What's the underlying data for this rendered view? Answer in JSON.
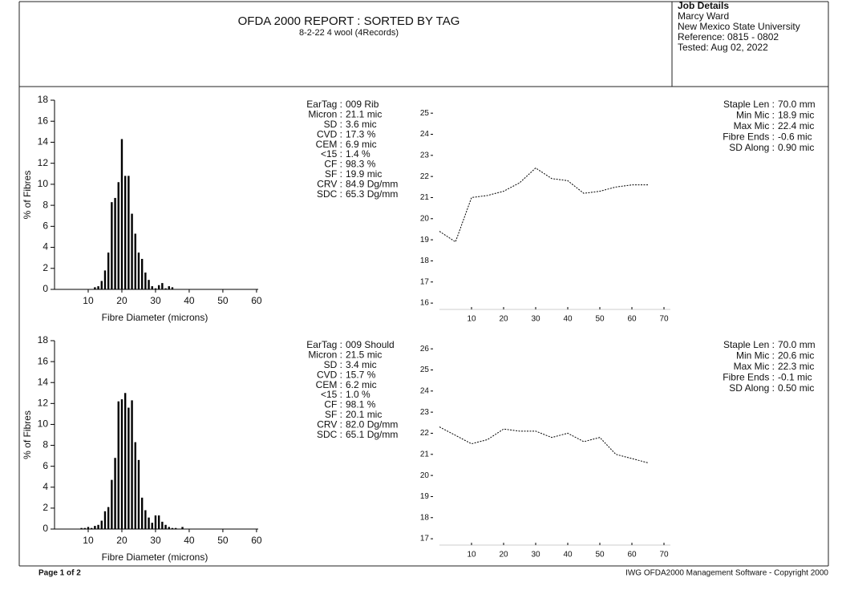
{
  "header": {
    "title": "OFDA 2000 REPORT : SORTED BY TAG",
    "subtitle": "8-2-22 4 wool (4Records)"
  },
  "job_details": {
    "title": "Job Details",
    "lines": [
      "Marcy Ward",
      "New Mexico State University",
      "Reference: 0815 - 0802",
      "Tested: Aug 02, 2022"
    ]
  },
  "records": [
    {
      "stats": [
        [
          "EarTag :",
          "009 Rib"
        ],
        [
          "Micron :",
          "21.1 mic"
        ],
        [
          "SD :",
          "3.6 mic"
        ],
        [
          "CVD :",
          "17.3 %"
        ],
        [
          "CEM :",
          "6.9 mic"
        ],
        [
          "<15 :",
          "1.4 %"
        ],
        [
          "CF :",
          "98.3 %"
        ],
        [
          "SF :",
          "19.9 mic"
        ],
        [
          "CRV :",
          "84.9 Dg/mm"
        ],
        [
          "SDC :",
          "65.3 Dg/mm"
        ]
      ],
      "summary": [
        [
          "Staple Len :",
          "70.0 mm"
        ],
        [
          "Min Mic :",
          "18.9 mic"
        ],
        [
          "Max Mic :",
          "22.4 mic"
        ],
        [
          "Fibre Ends :",
          "-0.6 mic"
        ],
        [
          "SD Along :",
          "0.90 mic"
        ]
      ]
    },
    {
      "stats": [
        [
          "EarTag :",
          "009 Should"
        ],
        [
          "Micron :",
          "21.5 mic"
        ],
        [
          "SD :",
          "3.4 mic"
        ],
        [
          "CVD :",
          "15.7 %"
        ],
        [
          "CEM :",
          "6.2 mic"
        ],
        [
          "<15 :",
          "1.0 %"
        ],
        [
          "CF :",
          "98.1 %"
        ],
        [
          "SF :",
          "20.1 mic"
        ],
        [
          "CRV :",
          "82.0 Dg/mm"
        ],
        [
          "SDC :",
          "65.1 Dg/mm"
        ]
      ],
      "summary": [
        [
          "Staple Len :",
          "70.0 mm"
        ],
        [
          "Min Mic :",
          "20.6 mic"
        ],
        [
          "Max Mic :",
          "22.3 mic"
        ],
        [
          "Fibre Ends :",
          "-0.1 mic"
        ],
        [
          "SD Along :",
          "0.50 mic"
        ]
      ]
    }
  ],
  "chart_data": [
    {
      "type": "histogram",
      "x_label": "Fibre Diameter (microns)",
      "y_label": "% of Fibres",
      "color": "#000000",
      "bins": [
        11.5,
        12.5,
        13.5,
        14.5,
        15.5,
        16.5,
        17.5,
        18.5,
        19.5,
        20.5,
        21.5,
        22.5,
        23.5,
        24.5,
        25.5,
        26.5,
        27.5,
        28.5,
        29.5,
        30.5,
        31.5,
        32.5,
        33.5,
        34.5,
        35.5
      ],
      "counts": [
        0.2,
        0.3,
        0.8,
        1.8,
        3.5,
        8.3,
        8.7,
        10.2,
        14.3,
        10.8,
        10.8,
        7.2,
        5.3,
        3.5,
        2.9,
        1.6,
        0.9,
        0.3,
        0.1,
        0.4,
        0.6,
        0.1,
        0.3,
        0.2
      ],
      "xlim": [
        0,
        60.5
      ],
      "ylim": [
        0,
        18
      ],
      "xticks": [
        10,
        20,
        30,
        40,
        50,
        60
      ],
      "yticks": [
        0,
        2,
        4,
        6,
        8,
        10,
        12,
        14,
        16,
        18
      ]
    },
    {
      "type": "line",
      "color": "#000000",
      "dashed": true,
      "x": [
        0,
        5,
        10,
        15,
        20,
        25,
        30,
        35,
        40,
        45,
        50,
        55,
        60,
        65
      ],
      "values": [
        19.4,
        18.9,
        21.0,
        21.1,
        21.3,
        21.7,
        22.4,
        21.9,
        21.8,
        21.2,
        21.3,
        21.5,
        21.6,
        21.6
      ],
      "xlim": [
        0,
        72
      ],
      "ylim": [
        15.7,
        25.5
      ],
      "xticks": [
        10,
        20,
        30,
        40,
        50,
        60,
        70
      ],
      "yticks": [
        16,
        17,
        18,
        19,
        20,
        21,
        22,
        23,
        24,
        25
      ]
    },
    {
      "type": "histogram",
      "x_label": "Fibre Diameter (microns)",
      "y_label": "% of Fibres",
      "color": "#000000",
      "bins": [
        7.5,
        8.5,
        9.5,
        10.5,
        11.5,
        12.5,
        13.5,
        14.5,
        15.5,
        16.5,
        17.5,
        18.5,
        19.5,
        20.5,
        21.5,
        22.5,
        23.5,
        24.5,
        25.5,
        26.5,
        27.5,
        28.5,
        29.5,
        30.5,
        31.5,
        32.5,
        33.5,
        34.5,
        35.5,
        36.5,
        37.5,
        38.5
      ],
      "counts": [
        0.1,
        0.1,
        0.2,
        0.1,
        0.3,
        0.4,
        0.8,
        1.7,
        2.1,
        4.7,
        6.8,
        12.2,
        12.4,
        13.0,
        11.6,
        12.3,
        8.3,
        6.6,
        3.0,
        1.8,
        1.1,
        0.6,
        1.3,
        1.3,
        0.7,
        0.4,
        0.2,
        0.1,
        0.1,
        0.0,
        0.2
      ],
      "xlim": [
        0,
        60.5
      ],
      "ylim": [
        0,
        18
      ],
      "xticks": [
        10,
        20,
        30,
        40,
        50,
        60
      ],
      "yticks": [
        0,
        2,
        4,
        6,
        8,
        10,
        12,
        14,
        16,
        18
      ]
    },
    {
      "type": "line",
      "color": "#000000",
      "dashed": true,
      "x": [
        0,
        5,
        10,
        15,
        20,
        25,
        30,
        35,
        40,
        45,
        50,
        55,
        60,
        65
      ],
      "values": [
        22.3,
        21.9,
        21.5,
        21.7,
        22.2,
        22.1,
        22.1,
        21.8,
        22.0,
        21.6,
        21.8,
        21.0,
        20.8,
        20.6
      ],
      "xlim": [
        0,
        72
      ],
      "ylim": [
        16.7,
        26.5
      ],
      "xticks": [
        10,
        20,
        30,
        40,
        50,
        60,
        70
      ],
      "yticks": [
        17,
        18,
        19,
        20,
        21,
        22,
        23,
        24,
        25,
        26
      ]
    }
  ],
  "footer": {
    "left": "Page 1 of 2",
    "right": "IWG OFDA2000 Management Software - Copyright 2000"
  }
}
